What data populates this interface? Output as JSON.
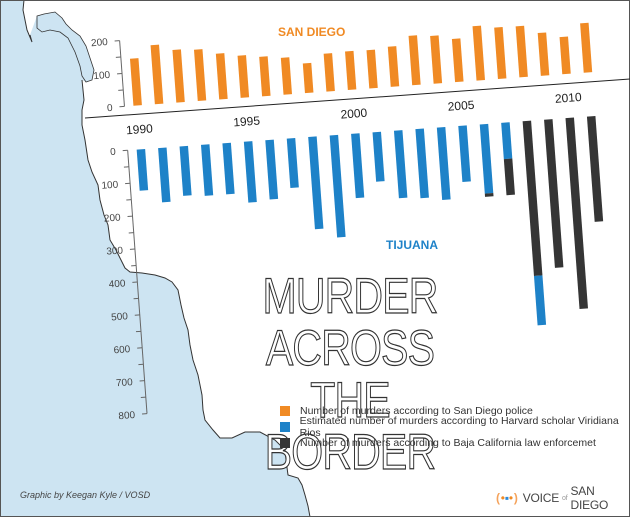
{
  "title": "MURDER ACROSS THE BORDER",
  "title_lines": [
    "MURDER ACROSS",
    "THE BORDER"
  ],
  "labels": {
    "san_diego": "SAN DIEGO",
    "tijuana": "TIJUANA"
  },
  "legend": [
    {
      "label": "Number of murders according to San Diego police",
      "color": "#f08a24"
    },
    {
      "label": "Estimated number of murders according to Harvard scholar Viridiana Rios",
      "color": "#1e82c8"
    },
    {
      "label": "Number of murders according to Baja California law enforcemet",
      "color": "#353535"
    }
  ],
  "credit": "Graphic by Keegan Kyle / VOSD",
  "logo": {
    "left": "(",
    "dots": "•▪•",
    "right": ")",
    "voice": "VOICE",
    "of": "of",
    "name": "SAN DIEGO"
  },
  "colors": {
    "san_diego": "#f08a24",
    "rios": "#1e82c8",
    "baja": "#353535",
    "ocean": "#cde4f2",
    "coast": "#333333"
  },
  "chart_data": [
    {
      "type": "bar",
      "title": "SAN DIEGO",
      "categories": [
        "1990",
        "1991",
        "1992",
        "1993",
        "1994",
        "1995",
        "1996",
        "1997",
        "1998",
        "1999",
        "2000",
        "2001",
        "2002",
        "2003",
        "2004",
        "2005",
        "2006",
        "2007",
        "2008",
        "2009",
        "2010",
        "2011"
      ],
      "series": [
        {
          "name": "Number of murders according to San Diego police",
          "values": [
            143,
            179,
            160,
            156,
            139,
            128,
            120,
            112,
            90,
            115,
            117,
            116,
            122,
            150,
            145,
            131,
            165,
            156,
            155,
            130,
            113,
            150
          ]
        }
      ],
      "yticks": [
        0,
        100,
        200
      ],
      "ylim": [
        0,
        200
      ],
      "xlabel": "",
      "ylabel": ""
    },
    {
      "type": "bar",
      "title": "TIJUANA",
      "orientation": "inverted (bars hang downward from 0)",
      "categories": [
        "1990",
        "1991",
        "1992",
        "1993",
        "1994",
        "1995",
        "1996",
        "1997",
        "1998",
        "1999",
        "2000",
        "2001",
        "2002",
        "2003",
        "2004",
        "2005",
        "2006",
        "2007",
        "2008",
        "2009",
        "2010",
        "2011"
      ],
      "xticks": [
        "1990",
        "1995",
        "2000",
        "2005",
        "2010"
      ],
      "series": [
        {
          "name": "Estimated number of murders according to Harvard scholar Viridiana Rios",
          "values": [
            125,
            165,
            150,
            155,
            155,
            185,
            180,
            150,
            280,
            310,
            195,
            150,
            205,
            210,
            220,
            170,
            210,
            110,
            620,
            null,
            null,
            null
          ]
        },
        {
          "name": "Number of murders according to Baja California law enforcemet",
          "values": [
            null,
            null,
            null,
            null,
            null,
            null,
            null,
            null,
            null,
            null,
            null,
            null,
            null,
            null,
            null,
            null,
            220,
            220,
            470,
            450,
            580,
            320
          ]
        }
      ],
      "yticks": [
        0,
        100,
        200,
        300,
        400,
        500,
        600,
        700,
        800
      ],
      "ylim": [
        0,
        800
      ],
      "xlabel": "",
      "ylabel": ""
    }
  ],
  "sd_axis": {
    "ticks": [
      "0",
      "100",
      "200"
    ]
  },
  "tj_axis": {
    "ticks": [
      "0",
      "100",
      "200",
      "300",
      "400",
      "500",
      "600",
      "700",
      "800"
    ]
  },
  "years": [
    "1990",
    "1995",
    "2000",
    "2005",
    "2010"
  ]
}
